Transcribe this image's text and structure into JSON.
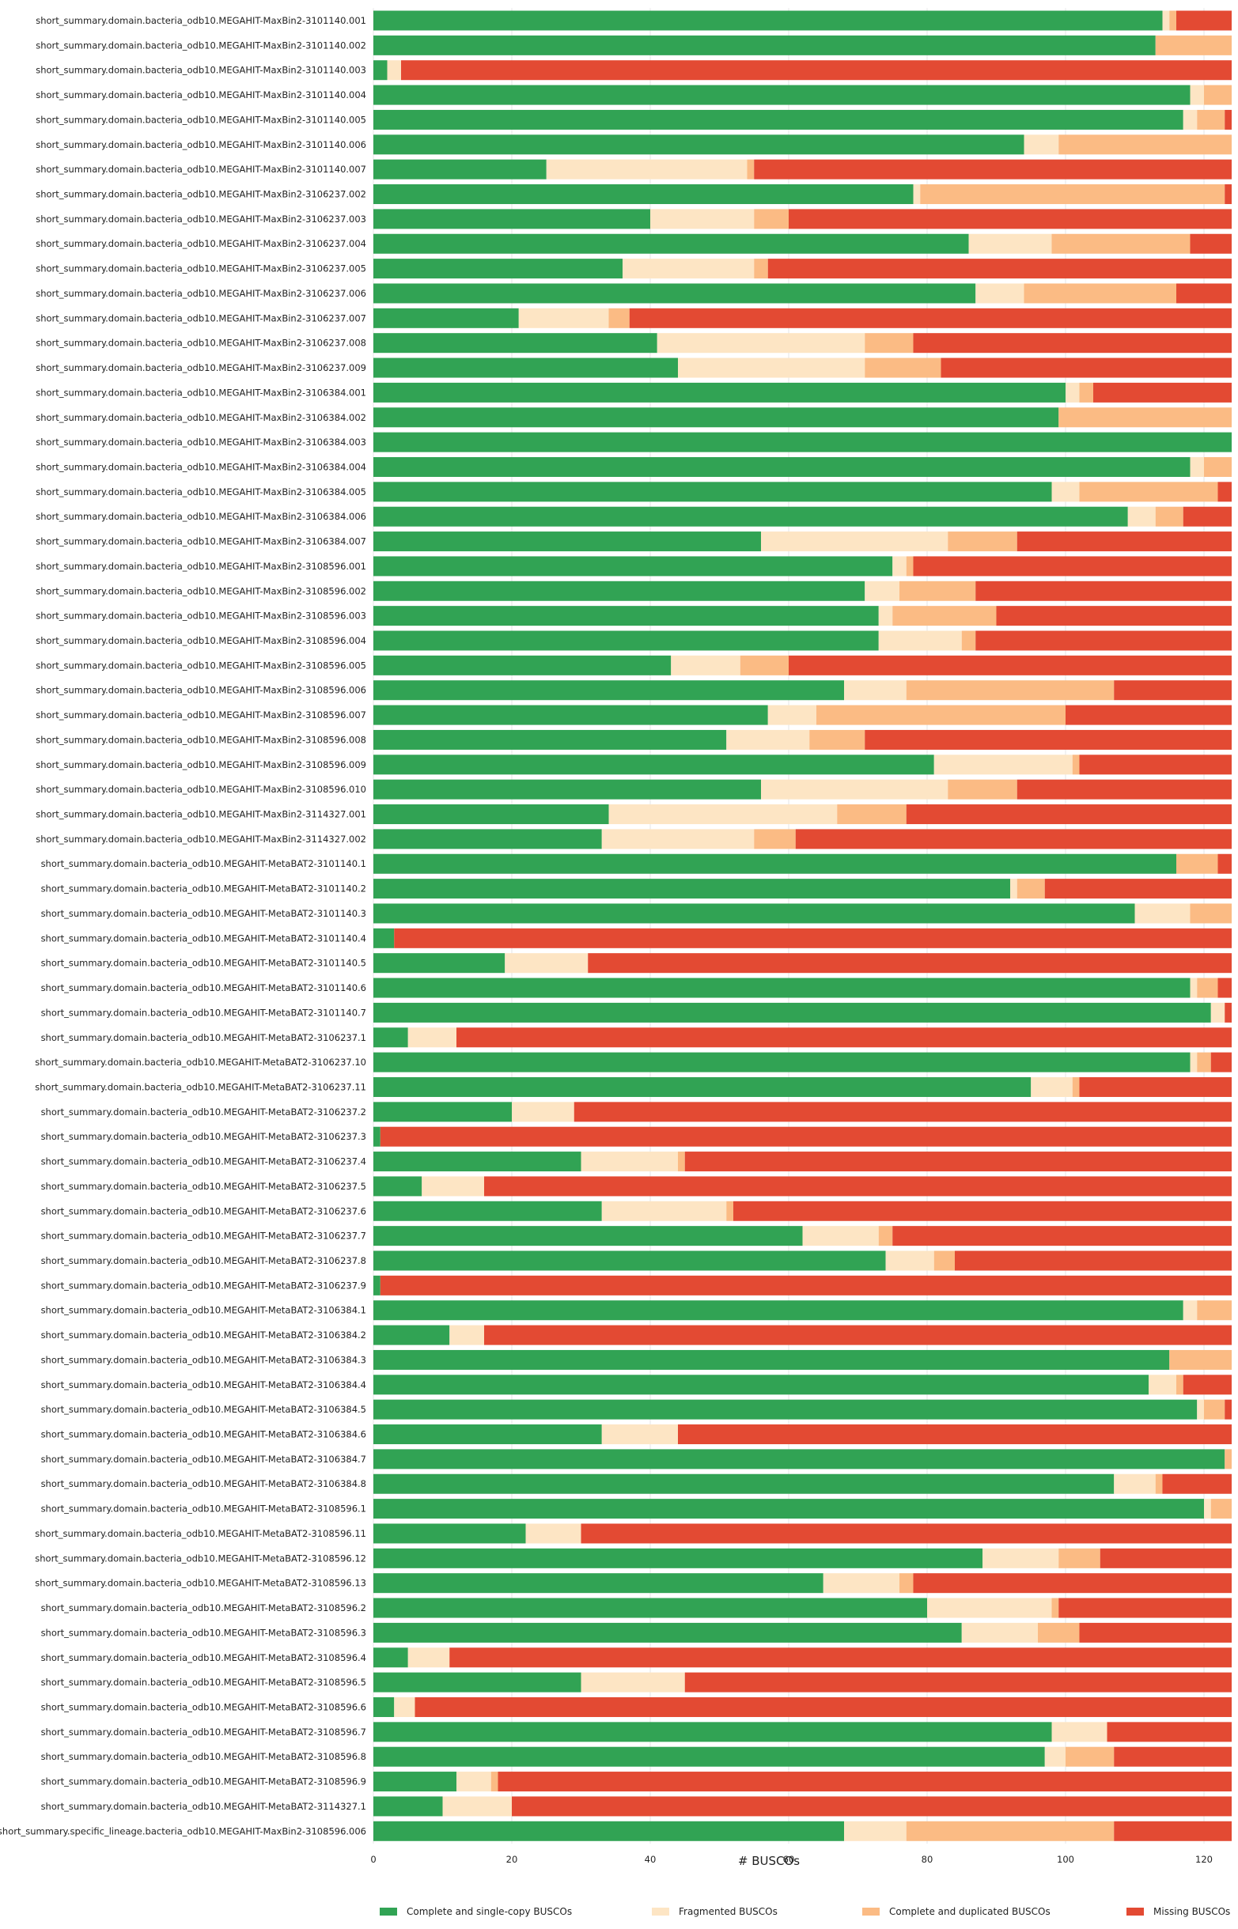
{
  "chart_data": {
    "type": "bar",
    "orientation": "horizontal",
    "stacked": true,
    "xlabel": "# BUSCOs",
    "ylabel": "",
    "xlim": [
      0,
      124
    ],
    "xticks": [
      0,
      20,
      40,
      60,
      80,
      100,
      120
    ],
    "grid": true,
    "legend_position": "bottom",
    "colors": {
      "Complete and single-copy BUSCOs": "#31a354",
      "Fragmented BUSCOs": "#fde5c4",
      "Complete and duplicated BUSCOs": "#fbbb84",
      "Missing BUSCOs": "#e34a33"
    },
    "categories": [
      "short_summary.domain.bacteria_odb10.MEGAHIT-MaxBin2-3101140.001",
      "short_summary.domain.bacteria_odb10.MEGAHIT-MaxBin2-3101140.002",
      "short_summary.domain.bacteria_odb10.MEGAHIT-MaxBin2-3101140.003",
      "short_summary.domain.bacteria_odb10.MEGAHIT-MaxBin2-3101140.004",
      "short_summary.domain.bacteria_odb10.MEGAHIT-MaxBin2-3101140.005",
      "short_summary.domain.bacteria_odb10.MEGAHIT-MaxBin2-3101140.006",
      "short_summary.domain.bacteria_odb10.MEGAHIT-MaxBin2-3101140.007",
      "short_summary.domain.bacteria_odb10.MEGAHIT-MaxBin2-3106237.002",
      "short_summary.domain.bacteria_odb10.MEGAHIT-MaxBin2-3106237.003",
      "short_summary.domain.bacteria_odb10.MEGAHIT-MaxBin2-3106237.004",
      "short_summary.domain.bacteria_odb10.MEGAHIT-MaxBin2-3106237.005",
      "short_summary.domain.bacteria_odb10.MEGAHIT-MaxBin2-3106237.006",
      "short_summary.domain.bacteria_odb10.MEGAHIT-MaxBin2-3106237.007",
      "short_summary.domain.bacteria_odb10.MEGAHIT-MaxBin2-3106237.008",
      "short_summary.domain.bacteria_odb10.MEGAHIT-MaxBin2-3106237.009",
      "short_summary.domain.bacteria_odb10.MEGAHIT-MaxBin2-3106384.001",
      "short_summary.domain.bacteria_odb10.MEGAHIT-MaxBin2-3106384.002",
      "short_summary.domain.bacteria_odb10.MEGAHIT-MaxBin2-3106384.003",
      "short_summary.domain.bacteria_odb10.MEGAHIT-MaxBin2-3106384.004",
      "short_summary.domain.bacteria_odb10.MEGAHIT-MaxBin2-3106384.005",
      "short_summary.domain.bacteria_odb10.MEGAHIT-MaxBin2-3106384.006",
      "short_summary.domain.bacteria_odb10.MEGAHIT-MaxBin2-3106384.007",
      "short_summary.domain.bacteria_odb10.MEGAHIT-MaxBin2-3108596.001",
      "short_summary.domain.bacteria_odb10.MEGAHIT-MaxBin2-3108596.002",
      "short_summary.domain.bacteria_odb10.MEGAHIT-MaxBin2-3108596.003",
      "short_summary.domain.bacteria_odb10.MEGAHIT-MaxBin2-3108596.004",
      "short_summary.domain.bacteria_odb10.MEGAHIT-MaxBin2-3108596.005",
      "short_summary.domain.bacteria_odb10.MEGAHIT-MaxBin2-3108596.006",
      "short_summary.domain.bacteria_odb10.MEGAHIT-MaxBin2-3108596.007",
      "short_summary.domain.bacteria_odb10.MEGAHIT-MaxBin2-3108596.008",
      "short_summary.domain.bacteria_odb10.MEGAHIT-MaxBin2-3108596.009",
      "short_summary.domain.bacteria_odb10.MEGAHIT-MaxBin2-3108596.010",
      "short_summary.domain.bacteria_odb10.MEGAHIT-MaxBin2-3114327.001",
      "short_summary.domain.bacteria_odb10.MEGAHIT-MaxBin2-3114327.002",
      "short_summary.domain.bacteria_odb10.MEGAHIT-MetaBAT2-3101140.1",
      "short_summary.domain.bacteria_odb10.MEGAHIT-MetaBAT2-3101140.2",
      "short_summary.domain.bacteria_odb10.MEGAHIT-MetaBAT2-3101140.3",
      "short_summary.domain.bacteria_odb10.MEGAHIT-MetaBAT2-3101140.4",
      "short_summary.domain.bacteria_odb10.MEGAHIT-MetaBAT2-3101140.5",
      "short_summary.domain.bacteria_odb10.MEGAHIT-MetaBAT2-3101140.6",
      "short_summary.domain.bacteria_odb10.MEGAHIT-MetaBAT2-3101140.7",
      "short_summary.domain.bacteria_odb10.MEGAHIT-MetaBAT2-3106237.1",
      "short_summary.domain.bacteria_odb10.MEGAHIT-MetaBAT2-3106237.10",
      "short_summary.domain.bacteria_odb10.MEGAHIT-MetaBAT2-3106237.11",
      "short_summary.domain.bacteria_odb10.MEGAHIT-MetaBAT2-3106237.2",
      "short_summary.domain.bacteria_odb10.MEGAHIT-MetaBAT2-3106237.3",
      "short_summary.domain.bacteria_odb10.MEGAHIT-MetaBAT2-3106237.4",
      "short_summary.domain.bacteria_odb10.MEGAHIT-MetaBAT2-3106237.5",
      "short_summary.domain.bacteria_odb10.MEGAHIT-MetaBAT2-3106237.6",
      "short_summary.domain.bacteria_odb10.MEGAHIT-MetaBAT2-3106237.7",
      "short_summary.domain.bacteria_odb10.MEGAHIT-MetaBAT2-3106237.8",
      "short_summary.domain.bacteria_odb10.MEGAHIT-MetaBAT2-3106237.9",
      "short_summary.domain.bacteria_odb10.MEGAHIT-MetaBAT2-3106384.1",
      "short_summary.domain.bacteria_odb10.MEGAHIT-MetaBAT2-3106384.2",
      "short_summary.domain.bacteria_odb10.MEGAHIT-MetaBAT2-3106384.3",
      "short_summary.domain.bacteria_odb10.MEGAHIT-MetaBAT2-3106384.4",
      "short_summary.domain.bacteria_odb10.MEGAHIT-MetaBAT2-3106384.5",
      "short_summary.domain.bacteria_odb10.MEGAHIT-MetaBAT2-3106384.6",
      "short_summary.domain.bacteria_odb10.MEGAHIT-MetaBAT2-3106384.7",
      "short_summary.domain.bacteria_odb10.MEGAHIT-MetaBAT2-3106384.8",
      "short_summary.domain.bacteria_odb10.MEGAHIT-MetaBAT2-3108596.1",
      "short_summary.domain.bacteria_odb10.MEGAHIT-MetaBAT2-3108596.11",
      "short_summary.domain.bacteria_odb10.MEGAHIT-MetaBAT2-3108596.12",
      "short_summary.domain.bacteria_odb10.MEGAHIT-MetaBAT2-3108596.13",
      "short_summary.domain.bacteria_odb10.MEGAHIT-MetaBAT2-3108596.2",
      "short_summary.domain.bacteria_odb10.MEGAHIT-MetaBAT2-3108596.3",
      "short_summary.domain.bacteria_odb10.MEGAHIT-MetaBAT2-3108596.4",
      "short_summary.domain.bacteria_odb10.MEGAHIT-MetaBAT2-3108596.5",
      "short_summary.domain.bacteria_odb10.MEGAHIT-MetaBAT2-3108596.6",
      "short_summary.domain.bacteria_odb10.MEGAHIT-MetaBAT2-3108596.7",
      "short_summary.domain.bacteria_odb10.MEGAHIT-MetaBAT2-3108596.8",
      "short_summary.domain.bacteria_odb10.MEGAHIT-MetaBAT2-3108596.9",
      "short_summary.domain.bacteria_odb10.MEGAHIT-MetaBAT2-3114327.1",
      "short_summary.specific_lineage.bacteria_odb10.MEGAHIT-MaxBin2-3108596.006"
    ],
    "series": [
      {
        "name": "Complete and single-copy BUSCOs",
        "values": [
          114,
          113,
          2,
          118,
          117,
          94,
          25,
          78,
          40,
          86,
          36,
          87,
          21,
          41,
          44,
          100,
          99,
          124,
          118,
          98,
          109,
          56,
          75,
          71,
          73,
          73,
          43,
          68,
          57,
          51,
          81,
          56,
          34,
          33,
          116,
          92,
          110,
          3,
          19,
          118,
          121,
          5,
          118,
          95,
          20,
          1,
          30,
          7,
          33,
          62,
          74,
          1,
          117,
          11,
          115,
          112,
          119,
          33,
          123,
          107,
          120,
          22,
          88,
          65,
          80,
          85,
          5,
          30,
          3,
          98,
          97,
          12,
          10,
          68
        ]
      },
      {
        "name": "Fragmented BUSCOs",
        "values": [
          1,
          0,
          2,
          2,
          2,
          5,
          29,
          1,
          15,
          12,
          19,
          7,
          13,
          30,
          27,
          2,
          0,
          0,
          2,
          4,
          4,
          27,
          2,
          5,
          2,
          12,
          10,
          9,
          7,
          12,
          20,
          27,
          33,
          22,
          0,
          1,
          8,
          0,
          12,
          1,
          2,
          7,
          1,
          6,
          9,
          0,
          14,
          9,
          18,
          11,
          7,
          0,
          2,
          5,
          0,
          4,
          1,
          11,
          0,
          6,
          1,
          8,
          11,
          11,
          18,
          11,
          6,
          15,
          3,
          8,
          3,
          5,
          10,
          9
        ]
      },
      {
        "name": "Complete and duplicated BUSCOs",
        "values": [
          1,
          11,
          0,
          4,
          4,
          25,
          1,
          44,
          5,
          20,
          2,
          22,
          3,
          7,
          11,
          2,
          25,
          0,
          4,
          20,
          4,
          10,
          1,
          11,
          15,
          2,
          7,
          30,
          36,
          8,
          1,
          10,
          10,
          6,
          6,
          4,
          6,
          0,
          0,
          3,
          0,
          0,
          2,
          1,
          0,
          0,
          1,
          0,
          1,
          2,
          3,
          0,
          5,
          0,
          9,
          1,
          3,
          0,
          1,
          1,
          3,
          0,
          6,
          2,
          1,
          6,
          0,
          0,
          0,
          0,
          7,
          1,
          0,
          30
        ]
      },
      {
        "name": "Missing BUSCOs",
        "values": [
          8,
          0,
          120,
          0,
          1,
          0,
          69,
          1,
          64,
          6,
          67,
          8,
          87,
          46,
          42,
          20,
          0,
          0,
          0,
          2,
          7,
          31,
          46,
          37,
          34,
          37,
          64,
          17,
          24,
          53,
          22,
          31,
          47,
          63,
          2,
          27,
          0,
          121,
          93,
          2,
          1,
          112,
          3,
          22,
          95,
          123,
          79,
          108,
          72,
          49,
          40,
          123,
          0,
          108,
          0,
          7,
          1,
          80,
          0,
          10,
          0,
          94,
          19,
          46,
          25,
          22,
          113,
          79,
          118,
          18,
          17,
          106,
          104,
          17
        ]
      }
    ]
  }
}
